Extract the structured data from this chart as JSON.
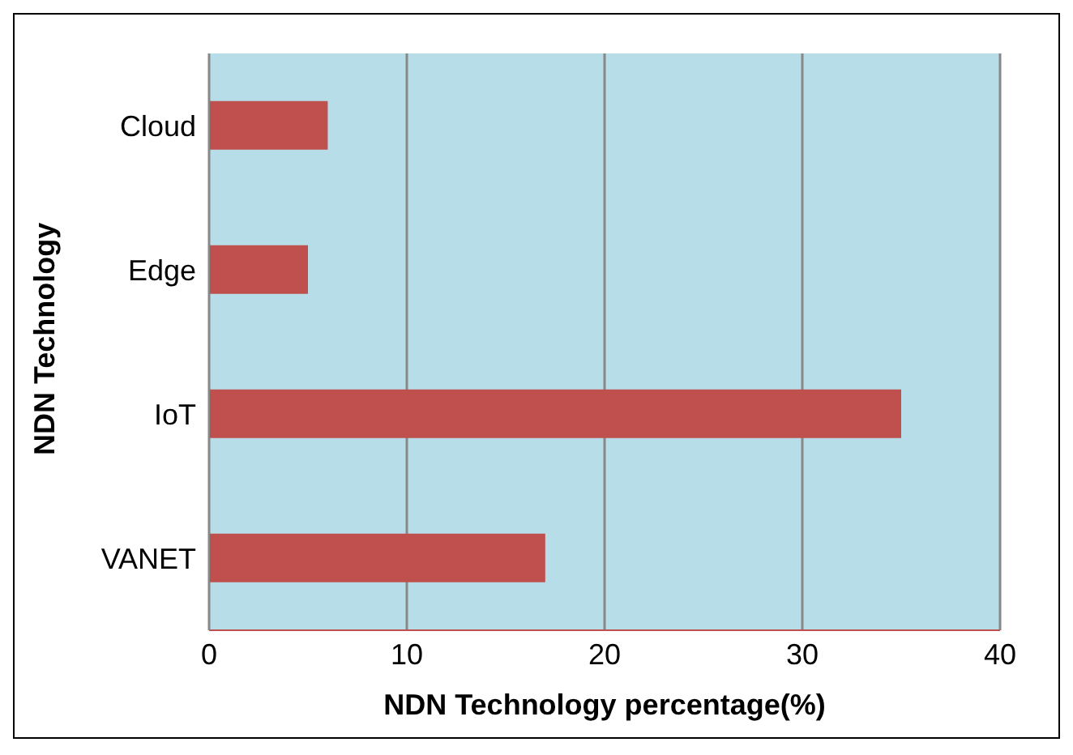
{
  "chart_data": {
    "type": "bar",
    "orientation": "horizontal",
    "xlabel": "NDN Technology percentage(%)",
    "ylabel": "NDN Technology",
    "categories": [
      "Cloud",
      "Edge",
      "IoT",
      "VANET"
    ],
    "values": [
      6,
      5,
      35,
      17
    ],
    "color": "#c0504d",
    "xlim": [
      0,
      40
    ],
    "xticks": [
      0,
      10,
      20,
      30,
      40
    ],
    "grid": "x"
  }
}
